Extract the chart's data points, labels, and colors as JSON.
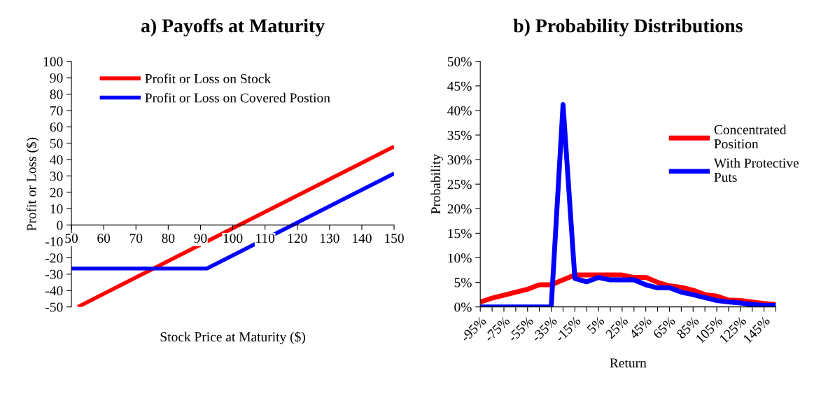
{
  "chart_data": [
    {
      "type": "line",
      "title": "a) Payoffs at Maturity",
      "xlabel": "Stock Price at Maturity ($)",
      "ylabel": "Profit or Loss ($)",
      "xlim": [
        50,
        150
      ],
      "xticks": [
        50,
        60,
        70,
        80,
        90,
        100,
        110,
        120,
        130,
        140,
        150
      ],
      "ylim": [
        -50,
        100
      ],
      "yticks": [
        -50,
        -40,
        -30,
        -20,
        -10,
        0,
        10,
        20,
        30,
        40,
        50,
        60,
        70,
        80,
        90,
        100
      ],
      "grid": false,
      "legend": "top left",
      "series": [
        {
          "name": "Profit or Loss on Stock",
          "color": "#ff0000",
          "x": [
            52,
            150
          ],
          "values": [
            -50,
            48
          ]
        },
        {
          "name": "Profit or Loss on Covered Postion",
          "color": "#0000ff",
          "x": [
            50,
            92,
            150
          ],
          "values": [
            -26.5,
            -26.5,
            31.5
          ]
        }
      ]
    },
    {
      "type": "line",
      "title": "b) Probability Distributions",
      "xlabel": "Return",
      "ylabel": "Probability",
      "categories": [
        "-95%",
        null,
        "-75%",
        null,
        "-55%",
        null,
        "-35%",
        null,
        "-15%",
        null,
        "5%",
        null,
        "25%",
        null,
        "45%",
        null,
        "65%",
        null,
        "85%",
        null,
        "105%",
        null,
        "125%",
        null,
        "145%",
        null
      ],
      "ylim": [
        0,
        50
      ],
      "yticks": [
        {
          "value": 0,
          "label": "0%"
        },
        {
          "value": 5,
          "label": "5%"
        },
        {
          "value": 10,
          "label": "10%"
        },
        {
          "value": 15,
          "label": "15%"
        },
        {
          "value": 20,
          "label": "20%"
        },
        {
          "value": 25,
          "label": "25%"
        },
        {
          "value": 30,
          "label": "30%"
        },
        {
          "value": 35,
          "label": "35%"
        },
        {
          "value": 40,
          "label": "40%"
        },
        {
          "value": 45,
          "label": "45%"
        },
        {
          "value": 50,
          "label": "50%"
        }
      ],
      "grid": false,
      "legend": "right",
      "series": [
        {
          "name": "Concentrated\nPosition",
          "color": "#ff0000",
          "values": [
            1,
            1.8,
            2.4,
            3,
            3.6,
            4.5,
            4.5,
            5.5,
            6.5,
            6.5,
            6.5,
            6.5,
            6.5,
            6,
            6,
            5,
            4.3,
            4,
            3.4,
            2.5,
            2.2,
            1.4,
            1.3,
            1,
            0.7,
            0.5
          ]
        },
        {
          "name": "With Protective\nPuts",
          "color": "#0000ff",
          "values": [
            0,
            0,
            0,
            0,
            0,
            0,
            0,
            41.2,
            5.8,
            5.1,
            6,
            5.5,
            5.5,
            5.5,
            4.5,
            3.9,
            3.9,
            3,
            2.5,
            1.9,
            1.3,
            1,
            0.8,
            0.5,
            0.3,
            0.3
          ]
        }
      ]
    }
  ]
}
